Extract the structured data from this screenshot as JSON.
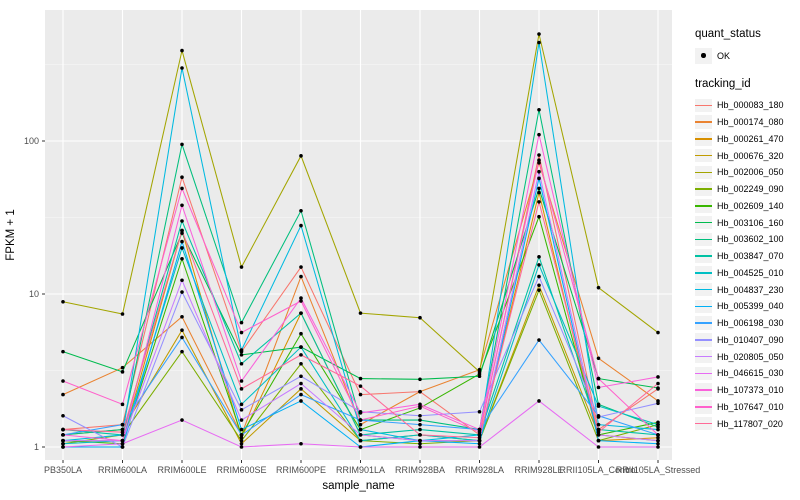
{
  "figure": {
    "panel_background": "#EBEBEB",
    "grid_major_color": "#FFFFFF",
    "grid_minor_color": "#FFFFFF",
    "tick_label_color": "#4D4D4D",
    "tick_mark_color": "#333333",
    "point_color": "#000000"
  },
  "legend": {
    "quant_status": {
      "title": "quant_status",
      "items": [
        {
          "label": "OK",
          "marker": "point"
        }
      ]
    },
    "tracking_id": {
      "title": "tracking_id"
    }
  },
  "chart_data": {
    "type": "line",
    "x_type": "categorical",
    "y_scale": "log10",
    "title": "",
    "xlabel": "sample_name",
    "ylabel": "FPKM + 1",
    "y_ticks": [
      1,
      10,
      100
    ],
    "y_minor_ticks": [
      3.162,
      31.62,
      316.2
    ],
    "ylim": [
      1,
      550
    ],
    "grid": true,
    "legend_position": "right",
    "marker": "black point (quant_status OK)",
    "categories": [
      "PB350LA",
      "RRIM600LA",
      "RRIM600LE",
      "RRIM600SE",
      "RRIM600PE",
      "RRIM901LA",
      "RRIM928BA",
      "RRIM928LA",
      "RRIM928LE",
      "RRII105LA_Control",
      "RRII105LA_Stressed"
    ],
    "series": [
      {
        "name": "Hb_000083_180",
        "color": "#F8766D",
        "values": [
          1.3,
          1.4,
          58,
          4.2,
          15,
          2.2,
          2.3,
          1.2,
          81,
          1.3,
          2.4
        ]
      },
      {
        "name": "Hb_000174_080",
        "color": "#EA8331",
        "values": [
          2.2,
          3.3,
          7.1,
          1.2,
          13,
          1.4,
          2.3,
          3.2,
          72,
          3.8,
          2.0
        ]
      },
      {
        "name": "Hb_000261_470",
        "color": "#D89000",
        "values": [
          1.1,
          1.1,
          26,
          1.15,
          7.5,
          1.2,
          1.1,
          1.1,
          46,
          1.1,
          1.15
        ]
      },
      {
        "name": "Hb_000676_320",
        "color": "#C09B00",
        "values": [
          1.2,
          1.3,
          5.8,
          1.05,
          2.4,
          1.1,
          1.2,
          1.1,
          11.4,
          1.2,
          1.1
        ]
      },
      {
        "name": "Hb_002006_050",
        "color": "#A3A500",
        "values": [
          8.9,
          7.4,
          390,
          15,
          80,
          7.5,
          7.0,
          3.1,
          500,
          11,
          5.6
        ]
      },
      {
        "name": "Hb_002249_090",
        "color": "#7CAE00",
        "values": [
          1.05,
          1.2,
          4.2,
          1.1,
          3.5,
          1.1,
          1.05,
          1.1,
          10.6,
          1.1,
          1.4
        ]
      },
      {
        "name": "Hb_002609_140",
        "color": "#39B600",
        "values": [
          1.1,
          1.05,
          17,
          1.2,
          5.5,
          1.3,
          1.8,
          3.0,
          32,
          1.2,
          1.45
        ]
      },
      {
        "name": "Hb_003106_160",
        "color": "#00BB4E",
        "values": [
          4.2,
          3.1,
          25,
          4.0,
          4.5,
          2.8,
          2.77,
          2.9,
          49,
          2.8,
          2.43
        ]
      },
      {
        "name": "Hb_003602_100",
        "color": "#00BF7D",
        "values": [
          1.2,
          1.3,
          95,
          6.5,
          35,
          1.5,
          1.5,
          1.3,
          160,
          1.9,
          1.35
        ]
      },
      {
        "name": "Hb_003847_070",
        "color": "#00C1A3",
        "values": [
          1.3,
          1.2,
          30,
          3.5,
          7.5,
          1.2,
          1.3,
          1.2,
          17.5,
          1.3,
          1.2
        ]
      },
      {
        "name": "Hb_004525_010",
        "color": "#00BFC4",
        "values": [
          1.05,
          1.1,
          20,
          1.9,
          4.5,
          1.1,
          1.2,
          1.1,
          15.5,
          1.85,
          1.4
        ]
      },
      {
        "name": "Hb_004837_230",
        "color": "#00BAE0",
        "values": [
          1.1,
          1.2,
          300,
          4.3,
          28,
          1.3,
          1.1,
          1.2,
          440,
          1.4,
          1.3
        ]
      },
      {
        "name": "Hb_005399_040",
        "color": "#00B0F6",
        "values": [
          1.0,
          1.0,
          22,
          1.3,
          2.0,
          1.0,
          1.1,
          1.05,
          57,
          1.1,
          1.05
        ]
      },
      {
        "name": "Hb_006198_030",
        "color": "#35A2FF",
        "values": [
          1.2,
          1.4,
          5.2,
          1.2,
          2.2,
          1.5,
          1.4,
          1.3,
          5.0,
          1.6,
          1.2
        ]
      },
      {
        "name": "Hb_010407_090",
        "color": "#9590FF",
        "values": [
          1.6,
          1.0,
          10.3,
          1.75,
          2.9,
          1.7,
          1.6,
          1.7,
          13,
          1.57,
          1.93
        ]
      },
      {
        "name": "Hb_020805_050",
        "color": "#C77CFF",
        "values": [
          1.1,
          1.1,
          12.3,
          1.5,
          2.6,
          1.2,
          1.1,
          1.1,
          63,
          1.2,
          1.1
        ]
      },
      {
        "name": "Hb_046615_030",
        "color": "#E76BF3",
        "values": [
          1.0,
          1.05,
          1.5,
          1.0,
          1.05,
          1.0,
          1.0,
          1.0,
          2.0,
          1.0,
          1.0
        ]
      },
      {
        "name": "Hb_107373_010",
        "color": "#FA62DB",
        "values": [
          1.2,
          1.1,
          38,
          2.7,
          9.4,
          1.67,
          1.9,
          1.3,
          110,
          2.45,
          2.87
        ]
      },
      {
        "name": "Hb_107647_010",
        "color": "#FF61CC",
        "values": [
          2.7,
          1.9,
          49,
          5.6,
          9.0,
          1.5,
          1.85,
          1.25,
          75,
          2.8,
          1.2
        ]
      },
      {
        "name": "Hb_117807_020",
        "color": "#FF6A98",
        "values": [
          1.3,
          1.25,
          26,
          2.4,
          4.0,
          2.5,
          1.2,
          1.15,
          40,
          1.25,
          2.6
        ]
      }
    ]
  }
}
